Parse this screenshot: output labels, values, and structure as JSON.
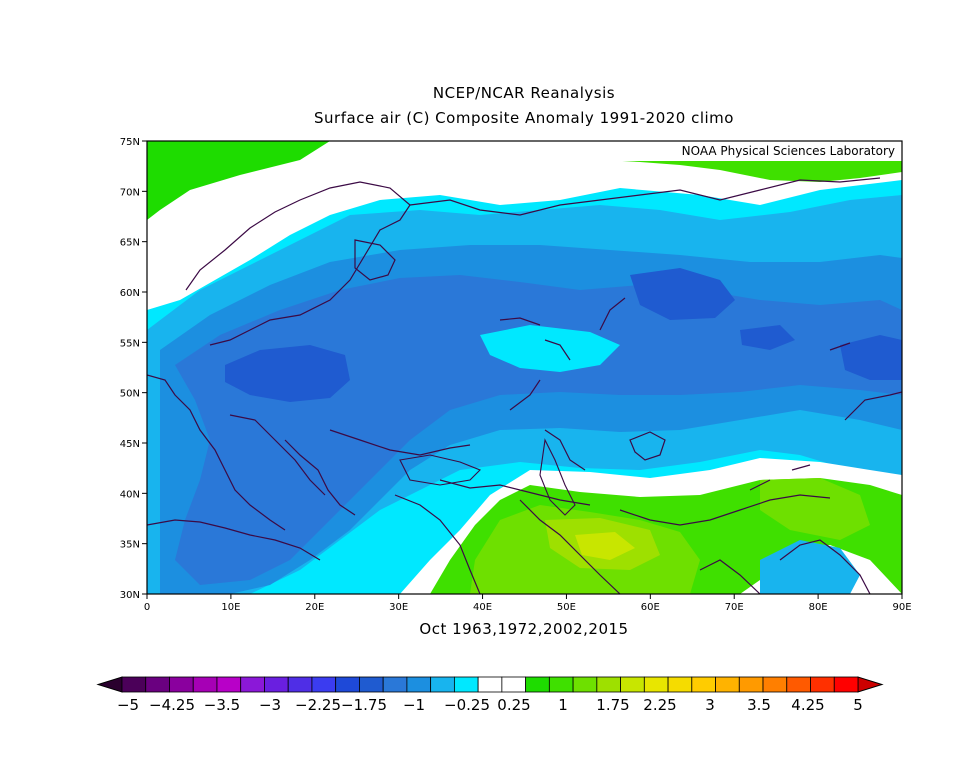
{
  "title_line1": "NCEP/NCAR Reanalysis",
  "title_line2": "Surface air (C) Composite Anomaly 1991-2020 climo",
  "credit": "NOAA Physical Sciences Laboratory",
  "footer": "Oct 1963,1972,2002,2015",
  "map": {
    "lon_range": [
      0,
      90
    ],
    "lat_range": [
      30,
      75
    ],
    "lon_labels": [
      "0",
      "10E",
      "20E",
      "30E",
      "40E",
      "50E",
      "60E",
      "70E",
      "80E",
      "90E"
    ],
    "lat_labels": [
      "30N",
      "35N",
      "40N",
      "45N",
      "50N",
      "55N",
      "60N",
      "65N",
      "70N",
      "75N"
    ]
  },
  "colorbar": {
    "labels": [
      "-5",
      "-4.25",
      "-3.5",
      "-3",
      "-2.25",
      "-1.75",
      "-1",
      "-0.25",
      "0.25",
      "1",
      "1.75",
      "2.25",
      "3",
      "3.5",
      "4.25",
      "5"
    ],
    "colors": [
      "#4b0059",
      "#6a0080",
      "#8a009e",
      "#a600b5",
      "#b800c8",
      "#8b18d8",
      "#6a1fe0",
      "#4f2ee6",
      "#3b3cf0",
      "#1e49d8",
      "#1f5bd0",
      "#2a78d8",
      "#1c8fe0",
      "#18b4ee",
      "#00e8ff",
      "#ffffff",
      "#ffffff",
      "#1edc00",
      "#3fe000",
      "#6ee000",
      "#9ee000",
      "#c8e600",
      "#e8e600",
      "#f5dc00",
      "#ffcc00",
      "#ffb300",
      "#ff9a00",
      "#ff7f00",
      "#ff5a00",
      "#ff3000",
      "#ff0000"
    ],
    "under_color": "#2a002e",
    "over_color": "#cc0000"
  }
}
